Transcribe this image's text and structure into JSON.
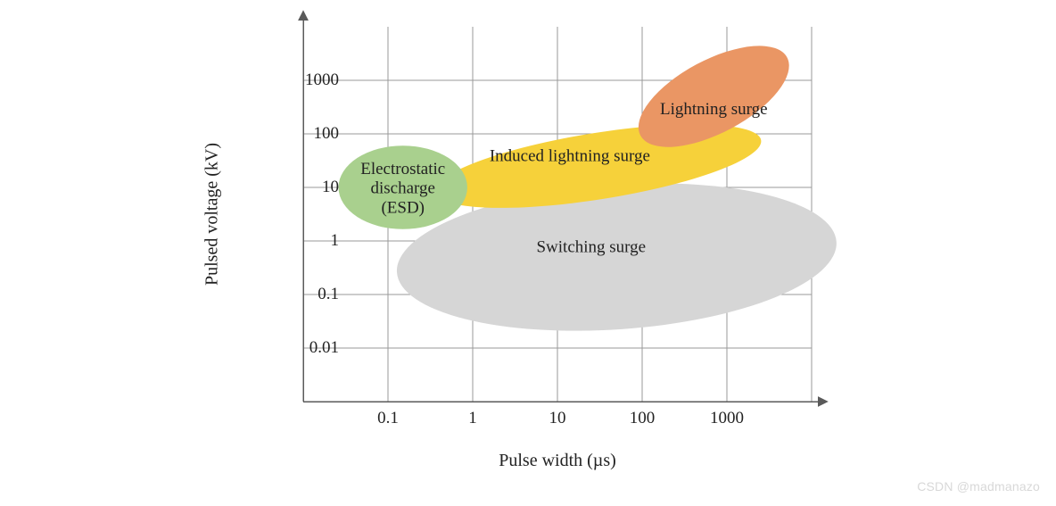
{
  "chart": {
    "type": "scatter-region-map",
    "background_color": "#ffffff",
    "axis_color": "#5a5a5a",
    "grid_color": "#9a9a9a",
    "text_color": "#222222",
    "font_family": "Times New Roman",
    "tick_fontsize": 19,
    "label_fontsize": 20,
    "region_label_fontsize": 19,
    "x": {
      "label": "Pulse width (µs)",
      "scale": "log",
      "min": 0.01,
      "max": 10000,
      "ticks": [
        0.1,
        1,
        10,
        100,
        1000
      ],
      "tick_labels": [
        "0.1",
        "1",
        "10",
        "100",
        "1000"
      ]
    },
    "y": {
      "label": "Pulsed voltage (kV)",
      "scale": "log",
      "min": 0.001,
      "max": 10000,
      "ticks": [
        0.01,
        0.1,
        1,
        10,
        100,
        1000
      ],
      "tick_labels": [
        "0.01",
        "0.1",
        "1",
        "10",
        "100",
        "1000"
      ]
    },
    "regions": [
      {
        "id": "switching-surge",
        "label": "Switching surge",
        "fill": "#d6d6d6",
        "stroke": "none",
        "cx_data": 50,
        "cy_data": 0.5,
        "rx_log_decades": 2.6,
        "ry_log_decades": 1.35,
        "rotation_deg": -4,
        "label_x_data": 25,
        "label_y_data": 0.8
      },
      {
        "id": "induced-lightning-surge",
        "label": "Induced lightning surge",
        "fill": "#f6d13a",
        "stroke": "none",
        "cx_data": 30,
        "cy_data": 25,
        "rx_log_decades": 1.95,
        "ry_log_decades": 0.62,
        "rotation_deg": -9,
        "label_x_data": 14,
        "label_y_data": 40
      },
      {
        "id": "lightning-surge",
        "label": "Lightning surge",
        "fill": "#ea9664",
        "stroke": "none",
        "cx_data": 700,
        "cy_data": 500,
        "rx_log_decades": 0.98,
        "ry_log_decades": 0.68,
        "rotation_deg": -28,
        "label_x_data": 700,
        "label_y_data": 300
      },
      {
        "id": "esd",
        "label": "Electrostatic\ndischarge\n(ESD)",
        "fill": "#a9d08e",
        "stroke": "none",
        "cx_data": 0.15,
        "cy_data": 10,
        "rx_log_decades": 0.76,
        "ry_log_decades": 0.78,
        "rotation_deg": 0,
        "label_x_data": 0.15,
        "label_y_data": 10
      }
    ]
  },
  "watermark": "CSDN @madmanazo"
}
